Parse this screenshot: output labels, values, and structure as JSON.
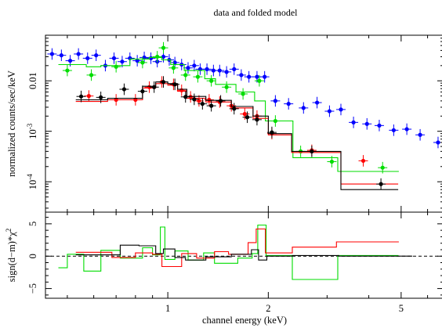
{
  "chart_data": {
    "type": "line",
    "title": "data and folded model",
    "xlabel": "channel energy (keV)",
    "x_scale": "log",
    "xlim": [
      0.43,
      6.7
    ],
    "x_ticks": [
      {
        "value": 1,
        "label": "1"
      },
      {
        "value": 2,
        "label": "2"
      },
      {
        "value": 5,
        "label": "5"
      }
    ],
    "top_panel": {
      "ylabel": "normalized counts/sec/keV",
      "y_scale": "log",
      "ylim": [
        2.5e-05,
        0.08
      ],
      "y_ticks": [
        {
          "value": 0.01,
          "label": "0.01"
        },
        {
          "value": 0.001,
          "label": "10",
          "exponent": "-3"
        },
        {
          "value": 0.0001,
          "label": "10",
          "exponent": "-4"
        }
      ],
      "series": [
        {
          "color": "#0000ff",
          "data": [
            {
              "x": 0.45,
              "y": 0.034
            },
            {
              "x": 0.48,
              "y": 0.032
            },
            {
              "x": 0.51,
              "y": 0.025
            },
            {
              "x": 0.54,
              "y": 0.034
            },
            {
              "x": 0.575,
              "y": 0.028
            },
            {
              "x": 0.61,
              "y": 0.032
            },
            {
              "x": 0.65,
              "y": 0.02
            },
            {
              "x": 0.69,
              "y": 0.028
            },
            {
              "x": 0.73,
              "y": 0.024
            },
            {
              "x": 0.77,
              "y": 0.028
            },
            {
              "x": 0.81,
              "y": 0.025
            },
            {
              "x": 0.85,
              "y": 0.029
            },
            {
              "x": 0.89,
              "y": 0.028
            },
            {
              "x": 0.93,
              "y": 0.024
            },
            {
              "x": 0.97,
              "y": 0.03
            },
            {
              "x": 1.01,
              "y": 0.026
            },
            {
              "x": 1.05,
              "y": 0.023
            },
            {
              "x": 1.1,
              "y": 0.021
            },
            {
              "x": 1.15,
              "y": 0.018
            },
            {
              "x": 1.2,
              "y": 0.02
            },
            {
              "x": 1.25,
              "y": 0.017
            },
            {
              "x": 1.31,
              "y": 0.017
            },
            {
              "x": 1.37,
              "y": 0.016
            },
            {
              "x": 1.43,
              "y": 0.016
            },
            {
              "x": 1.5,
              "y": 0.015
            },
            {
              "x": 1.58,
              "y": 0.017
            },
            {
              "x": 1.66,
              "y": 0.013
            },
            {
              "x": 1.75,
              "y": 0.012
            },
            {
              "x": 1.85,
              "y": 0.012
            },
            {
              "x": 1.95,
              "y": 0.012
            },
            {
              "x": 2.1,
              "y": 0.004
            },
            {
              "x": 2.3,
              "y": 0.0035
            },
            {
              "x": 2.55,
              "y": 0.0029
            },
            {
              "x": 2.8,
              "y": 0.0037
            },
            {
              "x": 3.05,
              "y": 0.0025
            },
            {
              "x": 3.3,
              "y": 0.0027
            },
            {
              "x": 3.6,
              "y": 0.0015
            },
            {
              "x": 3.95,
              "y": 0.0014
            },
            {
              "x": 4.3,
              "y": 0.0013
            },
            {
              "x": 4.75,
              "y": 0.00105
            },
            {
              "x": 5.2,
              "y": 0.0011
            },
            {
              "x": 5.7,
              "y": 0.00085
            },
            {
              "x": 6.45,
              "y": 0.0006
            }
          ]
        },
        {
          "color": "#00dd00",
          "data": [
            {
              "x": 0.5,
              "y": 0.016
            },
            {
              "x": 0.59,
              "y": 0.013
            },
            {
              "x": 0.7,
              "y": 0.019
            },
            {
              "x": 0.84,
              "y": 0.023
            },
            {
              "x": 0.93,
              "y": 0.03
            },
            {
              "x": 0.97,
              "y": 0.045
            },
            {
              "x": 1.04,
              "y": 0.018
            },
            {
              "x": 1.13,
              "y": 0.013
            },
            {
              "x": 1.23,
              "y": 0.012
            },
            {
              "x": 1.35,
              "y": 0.01
            },
            {
              "x": 1.5,
              "y": 0.0075
            },
            {
              "x": 1.68,
              "y": 0.0055
            },
            {
              "x": 1.88,
              "y": 0.01
            },
            {
              "x": 2.1,
              "y": 0.0016
            },
            {
              "x": 2.5,
              "y": 0.0004
            },
            {
              "x": 3.1,
              "y": 0.00025
            },
            {
              "x": 4.4,
              "y": 0.00019
            }
          ],
          "model": {
            "edges": [
              0.47,
              0.57,
              0.63,
              0.77,
              0.88,
              0.96,
              1.02,
              1.12,
              1.29,
              1.39,
              1.6,
              1.82,
              1.96,
              2.37,
              3.23,
              4.92
            ],
            "values": [
              0.021,
              0.019,
              0.02,
              0.027,
              0.029,
              0.026,
              0.021,
              0.016,
              0.011,
              0.0085,
              0.006,
              0.004,
              0.0016,
              0.0003,
              0.00016
            ]
          }
        },
        {
          "color": "#ff0000",
          "data": [
            {
              "x": 0.58,
              "y": 0.005
            },
            {
              "x": 0.7,
              "y": 0.0042
            },
            {
              "x": 0.8,
              "y": 0.0042
            },
            {
              "x": 0.88,
              "y": 0.0075
            },
            {
              "x": 0.96,
              "y": 0.0095
            },
            {
              "x": 1.04,
              "y": 0.0085
            },
            {
              "x": 1.1,
              "y": 0.0065
            },
            {
              "x": 1.17,
              "y": 0.0048
            },
            {
              "x": 1.24,
              "y": 0.004
            },
            {
              "x": 1.33,
              "y": 0.0042
            },
            {
              "x": 1.43,
              "y": 0.0038
            },
            {
              "x": 1.55,
              "y": 0.0032
            },
            {
              "x": 1.7,
              "y": 0.0022
            },
            {
              "x": 1.85,
              "y": 0.002
            },
            {
              "x": 2.05,
              "y": 0.0009
            },
            {
              "x": 2.7,
              "y": 0.00042
            },
            {
              "x": 3.85,
              "y": 0.00026
            }
          ],
          "model": {
            "edges": [
              0.53,
              0.66,
              0.84,
              0.92,
              1.0,
              1.07,
              1.14,
              1.3,
              1.55,
              1.8,
              2.0,
              2.35,
              3.3,
              4.9
            ],
            "values": [
              0.0039,
              0.0042,
              0.0072,
              0.0088,
              0.0082,
              0.0062,
              0.0045,
              0.0038,
              0.0029,
              0.0018,
              0.00085,
              0.00038,
              9e-05
            ]
          }
        },
        {
          "color": "#000000",
          "data": [
            {
              "x": 0.55,
              "y": 0.0049
            },
            {
              "x": 0.63,
              "y": 0.0047
            },
            {
              "x": 0.74,
              "y": 0.0068
            },
            {
              "x": 0.84,
              "y": 0.0062
            },
            {
              "x": 0.91,
              "y": 0.0075
            },
            {
              "x": 0.97,
              "y": 0.0095
            },
            {
              "x": 1.05,
              "y": 0.0085
            },
            {
              "x": 1.13,
              "y": 0.0048
            },
            {
              "x": 1.2,
              "y": 0.0043
            },
            {
              "x": 1.27,
              "y": 0.0035
            },
            {
              "x": 1.35,
              "y": 0.0032
            },
            {
              "x": 1.44,
              "y": 0.004
            },
            {
              "x": 1.58,
              "y": 0.0028
            },
            {
              "x": 1.73,
              "y": 0.0019
            },
            {
              "x": 1.85,
              "y": 0.0017
            },
            {
              "x": 2.05,
              "y": 0.00095
            },
            {
              "x": 2.7,
              "y": 0.0004
            },
            {
              "x": 4.35,
              "y": 9e-05
            }
          ],
          "model": {
            "edges": [
              0.53,
              0.66,
              0.84,
              0.92,
              1.0,
              1.07,
              1.14,
              1.3,
              1.55,
              1.8,
              2.0,
              2.35,
              3.3,
              4.9
            ],
            "values": [
              0.0042,
              0.0045,
              0.0078,
              0.0095,
              0.0088,
              0.0068,
              0.0049,
              0.0041,
              0.0031,
              0.002,
              0.0009,
              0.0004,
              7e-05
            ]
          }
        }
      ]
    },
    "bottom_panel": {
      "ylabel": "sign(d−m)*χ",
      "ylabel_superscript": "2",
      "ylim": [
        -6.5,
        6.8
      ],
      "y_ticks": [
        {
          "value": 5,
          "label": "5"
        },
        {
          "value": 0,
          "label": "0"
        },
        {
          "value": -5,
          "label": "−5"
        }
      ],
      "zero_line": "dashed",
      "residual_series": [
        {
          "color": "#00dd00",
          "edges": [
            0.47,
            0.5,
            0.56,
            0.63,
            0.72,
            0.84,
            0.9,
            0.95,
            0.98,
            1.05,
            1.15,
            1.28,
            1.38,
            1.62,
            1.79,
            1.86,
            1.97,
            2.36,
            3.23,
            4.91
          ],
          "values": [
            -1.8,
            0.3,
            -2.3,
            0.9,
            -0.3,
            1.3,
            0.2,
            4.5,
            -0.5,
            0.8,
            -0.6,
            0.5,
            -1.1,
            -0.3,
            0.4,
            4.8,
            0.1,
            -3.6,
            0.1
          ]
        },
        {
          "color": "#ff0000",
          "edges": [
            0.53,
            0.68,
            0.8,
            0.9,
            0.96,
            1.1,
            1.22,
            1.38,
            1.52,
            1.74,
            1.84,
            1.96,
            2.36,
            3.2,
            4.92
          ],
          "values": [
            0.6,
            -0.2,
            0.5,
            0.3,
            -1.6,
            0.4,
            -0.3,
            0.7,
            0.3,
            2.1,
            4.2,
            0.5,
            1.4,
            2.2
          ]
        },
        {
          "color": "#000000",
          "edges": [
            0.53,
            0.72,
            0.82,
            0.92,
            0.97,
            1.05,
            1.13,
            1.3,
            1.55,
            1.78,
            1.87,
            1.98,
            2.36,
            3.25,
            4.9,
            5.4
          ],
          "values": [
            0.2,
            1.7,
            1.6,
            0.4,
            1.1,
            -0.2,
            -0.6,
            -0.1,
            0.3,
            1.0,
            -0.6,
            0.0,
            0.1,
            0.0,
            0.0
          ]
        }
      ]
    }
  }
}
